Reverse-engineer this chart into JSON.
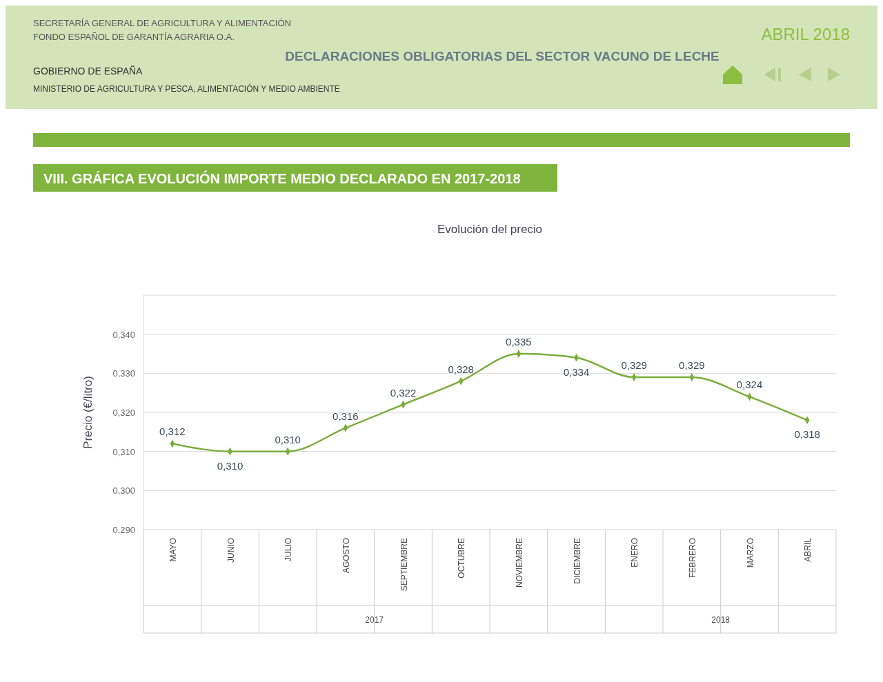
{
  "chart_data": {
    "type": "line",
    "title": "VIII. GRÁFICA EVOLUCIÓN IMPORTE MEDIO DECLARADO EN 2017-2018",
    "subtitle": "Evolución del precio",
    "ylabel": "Precio (€/litro)",
    "annotations": [
      "DECLARACIONES OBLIGATORIAS DEL SECTOR VACUNO DE LECHE",
      "ABRIL 2018",
      "GOBIERNO DE ESPAÑA",
      "MINISTERIO DE AGRICULTURA Y PESCA, ALIMENTACIÓN Y MEDIO AMBIENTE",
      "SECRETARÍA GENERAL DE AGRICULTURA Y ALIMENTACIÓN",
      "FONDO ESPAÑOL DE GARANTÍA AGRARIA O.A.",
      "2017",
      "2018"
    ],
    "categories": [
      "MAYO",
      "JUNIO",
      "JULIO",
      "AGOSTO",
      "SEPTIEMBRE",
      "OCTUBRE",
      "NOVIEMBRE",
      "DICIEMBRE",
      "ENERO",
      "FEBRERO",
      "MARZO",
      "ABRIL"
    ],
    "series": [
      {
        "color": "#7aad3a",
        "values": [
          0.312,
          0.31,
          0.31,
          0.316,
          0.322,
          0.328,
          0.335,
          0.334,
          0.329,
          0.329,
          0.324,
          0.318
        ],
        "value_labels": [
          "0,312",
          "0,310",
          "0,310",
          "0,316",
          "0,322",
          "0,328",
          "0,335",
          "0,334",
          "0,329",
          "0,329",
          "0,324",
          "0,318"
        ]
      }
    ],
    "ylim": [
      0.29,
      0.35
    ],
    "yticks": [
      {
        "value": 0.29,
        "label": "0,290"
      },
      {
        "value": 0.3,
        "label": "0,300"
      },
      {
        "value": 0.31,
        "label": "0,310"
      },
      {
        "value": 0.32,
        "label": "0,320"
      },
      {
        "value": 0.33,
        "label": "0,330"
      },
      {
        "value": 0.34,
        "label": "0,340"
      }
    ],
    "grid": "y",
    "marker": "diamond",
    "line_style": "solid"
  }
}
